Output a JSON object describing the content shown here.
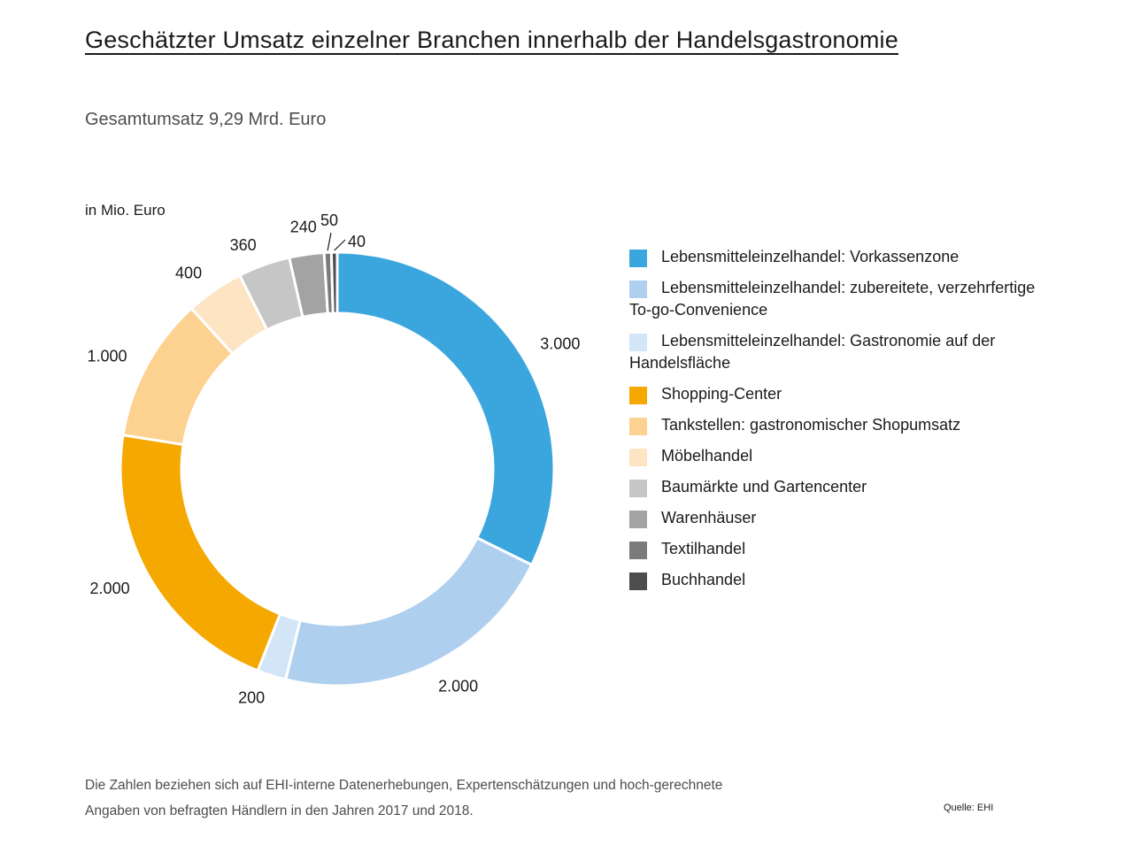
{
  "chart_data": {
    "type": "pie",
    "title": "Geschätzter Umsatz einzelner Branchen innerhalb der Handelsgastronomie",
    "subtitle": "Gesamtumsatz 9,29 Mrd. Euro",
    "unit_label": "in Mio. Euro",
    "categories": [
      "Lebensmitteleinzelhandel: Vorkassenzone",
      "Lebensmitteleinzelhandel: zubereitete, verzehrfertige To-go-Convenience",
      "Lebensmitteleinzelhandel: Gastronomie auf der Handelsfläche",
      "Shopping-Center",
      "Tankstellen: gastronomischer Shopumsatz",
      "Möbelhandel",
      "Baumärkte und Gartencenter",
      "Warenhäuser",
      "Textilhandel",
      "Buchhandel"
    ],
    "values": [
      3000,
      2000,
      200,
      2000,
      1000,
      400,
      360,
      240,
      50,
      40
    ],
    "value_labels": [
      "3.000",
      "2.000",
      "200",
      "2.000",
      "1.000",
      "400",
      "360",
      "240",
      "50",
      "40"
    ],
    "colors": [
      "#3ba6dd",
      "#afcfef",
      "#d3e6f8",
      "#f5a800",
      "#fdd18f",
      "#fde4c2",
      "#c6c6c6",
      "#a3a3a3",
      "#7b7b7b",
      "#4d4d4d"
    ],
    "legend_position": "right",
    "donut": true
  },
  "legend": {
    "items": [
      {
        "label": "Lebensmitteleinzelhandel: Vorkassenzone",
        "color": "#3ba6dd"
      },
      {
        "label": "Lebensmitteleinzelhandel: zubereitete, verzehrfertige To-go-Convenience",
        "color": "#afcfef"
      },
      {
        "label": "Lebensmitteleinzelhandel: Gastronomie auf der Handelsfläche",
        "color": "#d3e6f8"
      },
      {
        "label": "Shopping-Center",
        "color": "#f5a800"
      },
      {
        "label": "Tankstellen: gastronomischer Shopumsatz",
        "color": "#fdd18f"
      },
      {
        "label": "Möbelhandel",
        "color": "#fde4c2"
      },
      {
        "label": "Baumärkte und Gartencenter",
        "color": "#c6c6c6"
      },
      {
        "label": "Warenhäuser",
        "color": "#a3a3a3"
      },
      {
        "label": "Textilhandel",
        "color": "#7b7b7b"
      },
      {
        "label": "Buchhandel",
        "color": "#4d4d4d"
      }
    ]
  },
  "footnote": "Die Zahlen beziehen sich auf EHI-interne Datenerhebungen, Expertenschätzungen und hoch-gerechnete Angaben von befragten Händlern in den Jahren 2017 und 2018.",
  "source": "Quelle: EHI"
}
